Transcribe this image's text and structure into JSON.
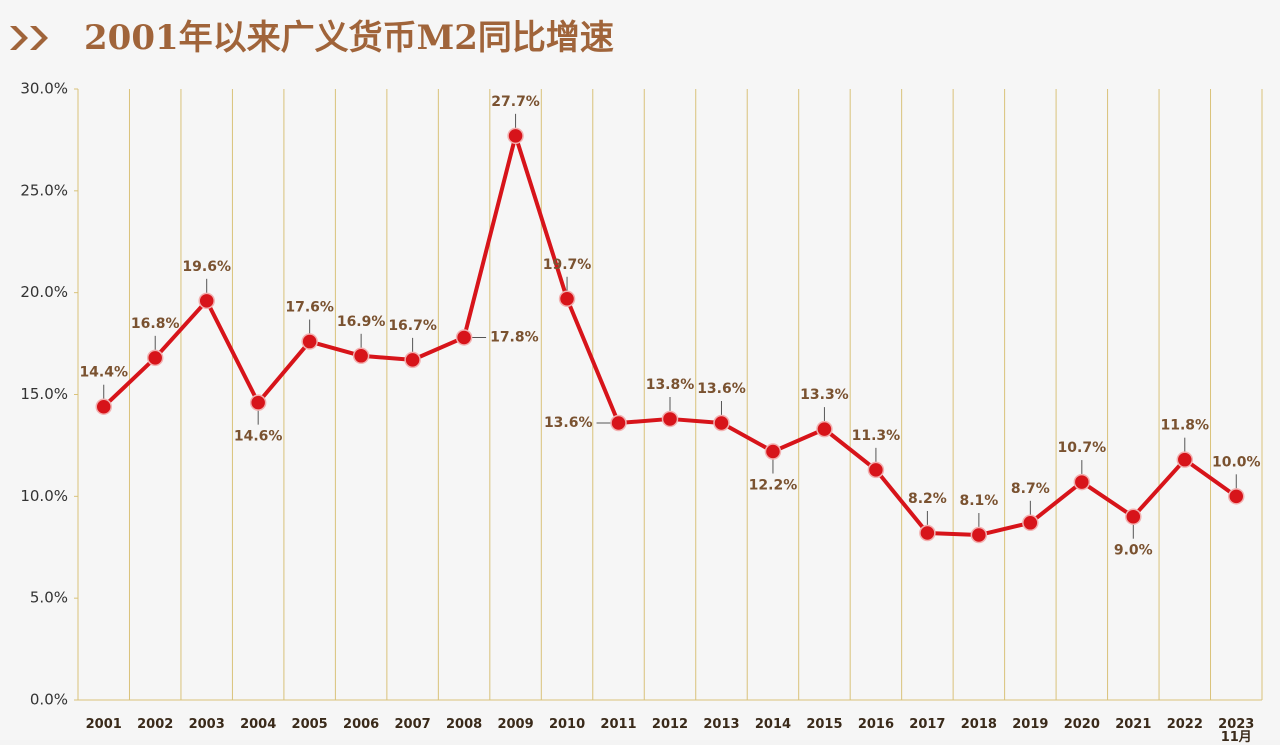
{
  "chart_data": {
    "type": "line",
    "title": "2001年以来广义货币M2同比增速",
    "categories": [
      "2001",
      "2002",
      "2003",
      "2004",
      "2005",
      "2006",
      "2007",
      "2008",
      "2009",
      "2010",
      "2011",
      "2012",
      "2013",
      "2014",
      "2015",
      "2016",
      "2017",
      "2018",
      "2019",
      "2020",
      "2021",
      "2022",
      "2023\n11月"
    ],
    "series": [
      {
        "name": "M2同比增速",
        "color": "#d7141a",
        "values": [
          14.4,
          16.8,
          19.6,
          14.6,
          17.6,
          16.9,
          16.7,
          17.8,
          27.7,
          19.7,
          13.6,
          13.8,
          13.6,
          12.2,
          13.3,
          11.3,
          8.2,
          8.1,
          8.7,
          10.7,
          9.0,
          11.8,
          10.0
        ],
        "value_labels": [
          "14.4%",
          "16.8%",
          "19.6%",
          "14.6%",
          "17.6%",
          "16.9%",
          "16.7%",
          "17.8%",
          "27.7%",
          "19.7%",
          "13.6%",
          "13.8%",
          "13.6%",
          "12.2%",
          "13.3%",
          "11.3%",
          "8.2%",
          "8.1%",
          "8.7%",
          "10.7%",
          "9.0%",
          "11.8%",
          "10.0%"
        ]
      }
    ],
    "ylim": [
      0,
      30
    ],
    "yticks": [
      {
        "value": 0,
        "label": "0.0%"
      },
      {
        "value": 5,
        "label": "5.0%"
      },
      {
        "value": 10,
        "label": "10.0%"
      },
      {
        "value": 15,
        "label": "15.0%"
      },
      {
        "value": 20,
        "label": "20.0%"
      },
      {
        "value": 25,
        "label": "25.0%"
      },
      {
        "value": 30,
        "label": "30.0%"
      }
    ]
  }
}
